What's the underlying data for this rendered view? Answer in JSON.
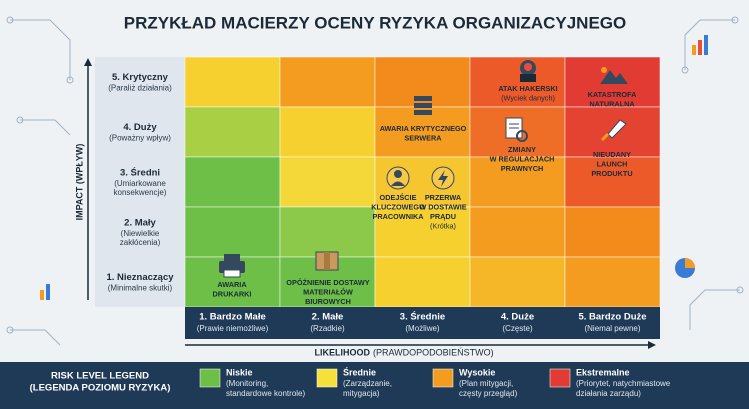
{
  "title": "PRZYKŁAD MACIERZY OCENY RYZYKA ORGANIZACYJNEGO",
  "y_axis_label": "IMPACT (WPŁYW)",
  "x_axis_label": {
    "main": "LIKELIHOOD",
    "sub": "(PRAWDOPODOBIEŃSTWO)"
  },
  "rows": [
    {
      "label": "5. Krytyczny",
      "sub": [
        "(Paraliż działania)"
      ]
    },
    {
      "label": "4. Duży",
      "sub": [
        "(Poważny wpływ)"
      ]
    },
    {
      "label": "3. Średni",
      "sub": [
        "(Umiarkowane",
        "konsekwencje)"
      ]
    },
    {
      "label": "2. Mały",
      "sub": [
        "(Niewielkie",
        "zakłócenia)"
      ]
    },
    {
      "label": "1. Nieznaczący",
      "sub": [
        "(Minimalne skutki)"
      ]
    }
  ],
  "columns": [
    {
      "label": "1. Bardzo Małe",
      "sub": "(Prawie niemożliwe)"
    },
    {
      "label": "2. Małe",
      "sub": "(Rzadkie)"
    },
    {
      "label": "3. Średnie",
      "sub": "(Możliwe)"
    },
    {
      "label": "4. Duże",
      "sub": "(Częste)"
    },
    {
      "label": "5. Bardzo Duże",
      "sub": "(Niemal pewne)"
    }
  ],
  "risks": [
    {
      "lines": [
        "AWARIA",
        "DRUKARKI"
      ]
    },
    {
      "lines": [
        "OPÓŹNIENIE DOSTAWY",
        "MATERIAŁÓW",
        "BIUROWYCH"
      ]
    },
    {
      "lines": [
        "ODEJŚCIE",
        "KLUCZOWEGO",
        "PRACOWNIKA"
      ]
    },
    {
      "lines": [
        "PRZERWA",
        "W DOSTAWIE",
        "PRĄDU",
        "(Krótka)"
      ]
    },
    {
      "lines": [
        "AWARIA KRYTYCZNEGO",
        "SERWERA"
      ]
    },
    {
      "lines": [
        "ATAK HAKERSKI",
        "(Wyciek danych)"
      ]
    },
    {
      "lines": [
        "ZMIANY",
        "W REGULACJACH",
        "PRAWNYCH"
      ]
    },
    {
      "lines": [
        "KATASTROFA",
        "NATURALNA"
      ]
    },
    {
      "lines": [
        "NIEUDANY",
        "LAUNCH",
        "PRODUKTU"
      ]
    }
  ],
  "legend": {
    "title": [
      "RISK LEVEL LEGEND",
      "(LEGENDA POZIOMU RYZYKA)"
    ],
    "levels": [
      {
        "name": "Niskie",
        "desc": [
          "(Monitoring,",
          "standardowe kontrole)"
        ]
      },
      {
        "name": "Średnie",
        "desc": [
          "(Zarządzanie,",
          "mitygacja)"
        ]
      },
      {
        "name": "Wysokie",
        "desc": [
          "(Plan mitygacji,",
          "częsty przegląd)"
        ]
      },
      {
        "name": "Ekstremalne",
        "desc": [
          "(Priorytet, natychmiastowe",
          "działania zarządu)"
        ]
      }
    ]
  }
}
